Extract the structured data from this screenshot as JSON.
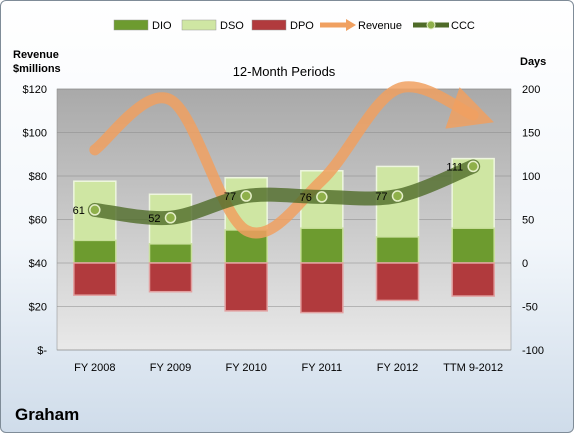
{
  "chart_data": {
    "type": "bar",
    "title": "12-Month Periods",
    "company": "Graham",
    "left_axis": {
      "label_line1": "Revenue",
      "label_line2": "$millions",
      "range": [
        0,
        120
      ],
      "ticks": [
        "$-",
        "$20",
        "$40",
        "$60",
        "$80",
        "$100",
        "$120"
      ]
    },
    "right_axis": {
      "label": "Days",
      "range": [
        -100,
        200
      ],
      "ticks": [
        "-100",
        "-50",
        "0",
        "50",
        "100",
        "150",
        "200"
      ]
    },
    "categories": [
      "FY 2008",
      "FY 2009",
      "FY 2010",
      "FY 2011",
      "FY 2012",
      "TTM 9-2012"
    ],
    "legend": [
      "DIO",
      "DSO",
      "DPO",
      "Revenue",
      "CCC"
    ],
    "legend_position": "top",
    "grid": true,
    "series": [
      {
        "name": "DIO",
        "color": "#6d9b2f",
        "values": [
          26,
          22,
          38,
          40,
          30,
          40
        ]
      },
      {
        "name": "DSO",
        "color": "#cfe6a3",
        "values": [
          68,
          57,
          60,
          66,
          81,
          80
        ]
      },
      {
        "name": "DPO",
        "color": "#b13a3d",
        "values": [
          -37,
          -33,
          -55,
          -57,
          -43,
          -38
        ]
      },
      {
        "name": "Revenue",
        "color": "#f0a060",
        "values": [
          92,
          115,
          55,
          78,
          120,
          108
        ]
      },
      {
        "name": "CCC",
        "color": "#4f6b28",
        "values": [
          61,
          52,
          77,
          76,
          77,
          111
        ],
        "labels": [
          "61",
          "52",
          "77",
          "76",
          "77",
          "111"
        ]
      }
    ]
  }
}
